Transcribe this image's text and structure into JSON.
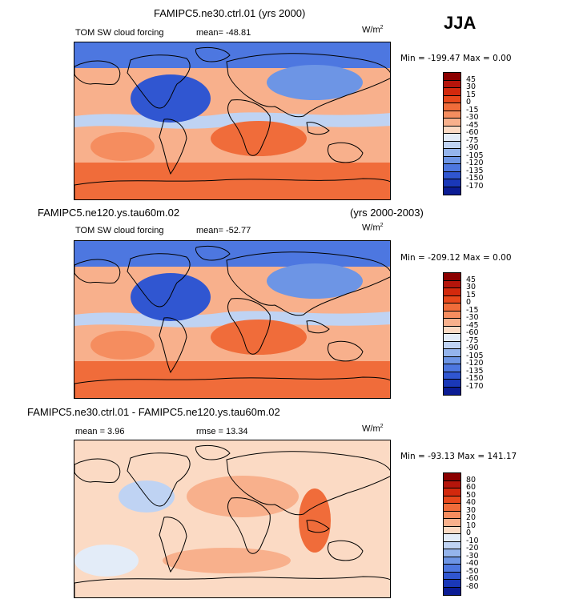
{
  "season": "JJA",
  "panels": [
    {
      "title": "FAMIPC5.ne30.ctrl.01 (yrs 2000)",
      "title_right": "",
      "variable": "TOM SW cloud forcing",
      "stat1": "mean=  -48.81",
      "stat2": "",
      "units": "W/m",
      "units_sup": "2",
      "minmax": "Min = -199.47 Max =    0.00",
      "levels": [
        "45",
        "30",
        "15",
        "0",
        "-15",
        "-30",
        "-45",
        "-60",
        "-75",
        "-90",
        "-105",
        "-120",
        "-135",
        "-150",
        "-170"
      ],
      "colors": [
        "#8b0000",
        "#b5150b",
        "#d3290d",
        "#e8481c",
        "#f06c3a",
        "#f58d5f",
        "#f8b08c",
        "#fbdac4",
        "#e3ecf8",
        "#bfd3f3",
        "#94b4ec",
        "#6d95e5",
        "#4d77e0",
        "#3056d1",
        "#1a38b8",
        "#0b1c94"
      ]
    },
    {
      "title": "FAMIPC5.ne120.ys.tau60m.02",
      "title_right": "(yrs 2000-2003)",
      "variable": "TOM SW cloud forcing",
      "stat1": "mean=  -52.77",
      "stat2": "",
      "units": "W/m",
      "units_sup": "2",
      "minmax": "Min = -209.12 Max =    0.00",
      "levels": [
        "45",
        "30",
        "15",
        "0",
        "-15",
        "-30",
        "-45",
        "-60",
        "-75",
        "-90",
        "-105",
        "-120",
        "-135",
        "-150",
        "-170"
      ],
      "colors": [
        "#8b0000",
        "#b5150b",
        "#d3290d",
        "#e8481c",
        "#f06c3a",
        "#f58d5f",
        "#f8b08c",
        "#fbdac4",
        "#e3ecf8",
        "#bfd3f3",
        "#94b4ec",
        "#6d95e5",
        "#4d77e0",
        "#3056d1",
        "#1a38b8",
        "#0b1c94"
      ]
    },
    {
      "title": "FAMIPC5.ne30.ctrl.01 - FAMIPC5.ne120.ys.tau60m.02",
      "title_right": "",
      "variable": "",
      "stat1": "mean =    3.96",
      "stat2": "rmse =  13.34",
      "units": "W/m",
      "units_sup": "2",
      "minmax": "Min = -93.13 Max = 141.17",
      "levels": [
        "80",
        "60",
        "50",
        "40",
        "30",
        "20",
        "10",
        "0",
        "-10",
        "-20",
        "-30",
        "-40",
        "-50",
        "-60",
        "-80"
      ],
      "colors": [
        "#8b0000",
        "#b5150b",
        "#d3290d",
        "#e8481c",
        "#f06c3a",
        "#f58d5f",
        "#f8b08c",
        "#fbdac4",
        "#e3ecf8",
        "#bfd3f3",
        "#94b4ec",
        "#6d95e5",
        "#4d77e0",
        "#3056d1",
        "#1a38b8",
        "#0b1c94"
      ]
    }
  ],
  "chart_data": [
    {
      "type": "heatmap",
      "title": "FAMIPC5.ne30.ctrl.01 (yrs 2000)",
      "variable": "TOM SW cloud forcing",
      "units": "W/m2",
      "mean": -48.81,
      "min": -199.47,
      "max": 0.0,
      "contour_levels": [
        45,
        30,
        15,
        0,
        -15,
        -30,
        -45,
        -60,
        -75,
        -90,
        -105,
        -120,
        -135,
        -150,
        -170
      ]
    },
    {
      "type": "heatmap",
      "title": "FAMIPC5.ne120.ys.tau60m.02",
      "variable": "TOM SW cloud forcing",
      "units": "W/m2",
      "mean": -52.77,
      "min": -209.12,
      "max": 0.0,
      "contour_levels": [
        45,
        30,
        15,
        0,
        -15,
        -30,
        -45,
        -60,
        -75,
        -90,
        -105,
        -120,
        -135,
        -150,
        -170
      ]
    },
    {
      "type": "heatmap",
      "title": "FAMIPC5.ne30.ctrl.01 - FAMIPC5.ne120.ys.tau60m.02",
      "units": "W/m2",
      "mean": 3.96,
      "rmse": 13.34,
      "min": -93.13,
      "max": 141.17,
      "contour_levels": [
        80,
        60,
        50,
        40,
        30,
        20,
        10,
        0,
        -10,
        -20,
        -30,
        -40,
        -50,
        -60,
        -80
      ]
    }
  ]
}
